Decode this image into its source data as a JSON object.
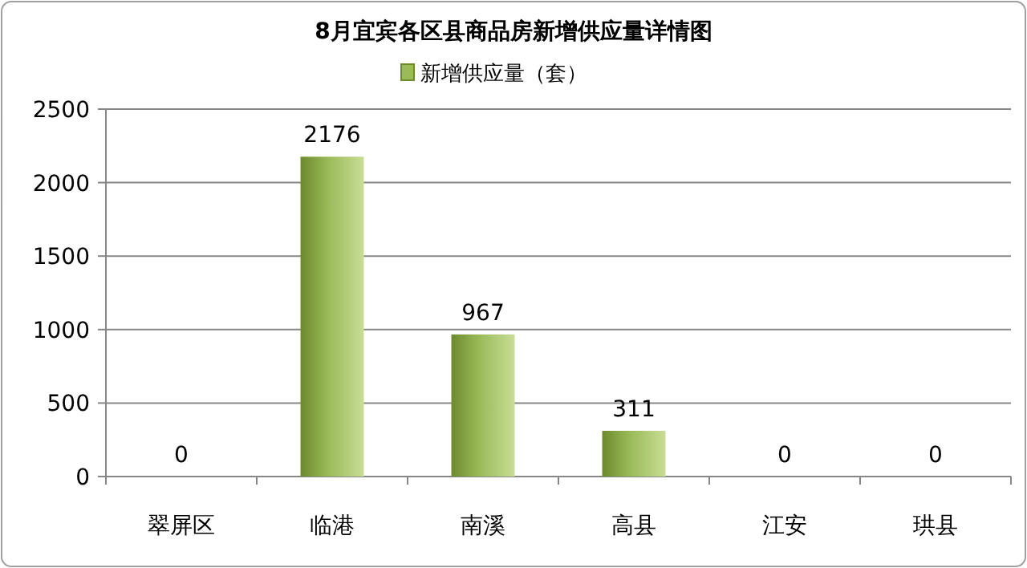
{
  "chart_data": {
    "type": "bar",
    "title": "8月宜宾各区县商品房新增供应量详情图",
    "categories": [
      "翠屏区",
      "临港",
      "南溪",
      "高县",
      "江安",
      "珙县"
    ],
    "series": [
      {
        "name": "新增供应量（套）",
        "color": "#9bbb59",
        "values": [
          0,
          2176,
          967,
          311,
          0,
          0
        ]
      }
    ],
    "ylim": [
      0,
      2500
    ],
    "yticks": [
      0,
      500,
      1000,
      1500,
      2000,
      2500
    ],
    "grid": "y",
    "legend": "top",
    "data_labels": true
  }
}
